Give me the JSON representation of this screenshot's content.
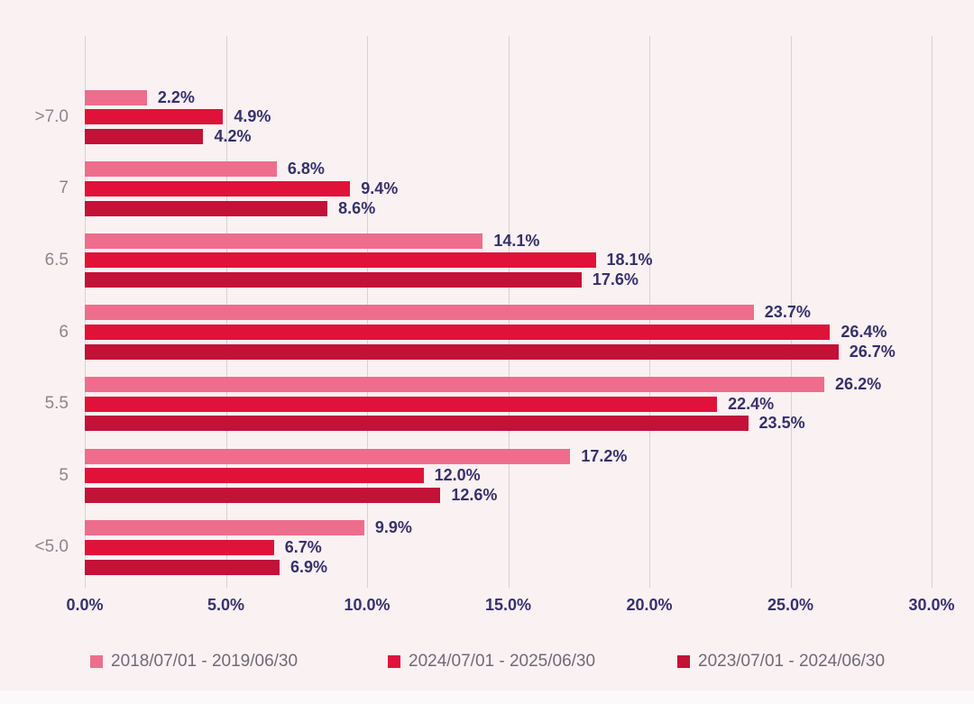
{
  "chart_data": {
    "type": "bar",
    "orientation": "horizontal",
    "title": "",
    "categories": [
      ">7.0",
      "7",
      "6.5",
      "6",
      "5.5",
      "5",
      "<5.0"
    ],
    "series": [
      {
        "name": "2018/07/01 - 2019/06/30",
        "color": "#EF6D8C",
        "values": [
          2.2,
          6.8,
          14.1,
          23.7,
          26.2,
          17.2,
          9.9
        ]
      },
      {
        "name": "2024/07/01 - 2025/06/30",
        "color": "#E01239",
        "values": [
          4.9,
          9.4,
          18.1,
          26.4,
          22.4,
          12.0,
          6.7
        ]
      },
      {
        "name": "2023/07/01 - 2024/06/30",
        "color": "#C31138",
        "values": [
          4.2,
          8.6,
          17.6,
          26.7,
          23.5,
          12.6,
          6.9
        ]
      }
    ],
    "value_labels": [
      [
        "2.2%",
        "6.8%",
        "14.1%",
        "23.7%",
        "26.2%",
        "17.2%",
        "9.9%"
      ],
      [
        "4.9%",
        "9.4%",
        "18.1%",
        "26.4%",
        "22.4%",
        "12.0%",
        "6.7%"
      ],
      [
        "4.2%",
        "8.6%",
        "17.6%",
        "26.7%",
        "23.5%",
        "12.6%",
        "6.9%"
      ]
    ],
    "x_ticks": [
      "0.0%",
      "5.0%",
      "10.0%",
      "15.0%",
      "20.0%",
      "25.0%",
      "30.0%"
    ],
    "x_range": [
      0,
      30
    ],
    "xlabel": "",
    "ylabel": "",
    "grid": "vertical",
    "legend_position": "bottom",
    "colors": {
      "background": "#FAF1F3",
      "gridline": "#D8D2D5",
      "value_label": "#36316B",
      "tick_label": "#36316B",
      "category_label": "#8A878C",
      "legend_text": "#6F6B75"
    }
  }
}
